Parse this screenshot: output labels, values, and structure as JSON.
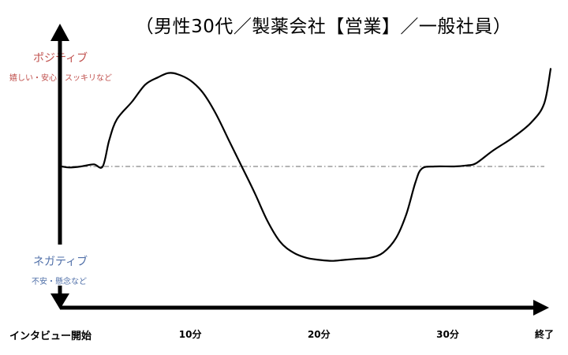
{
  "title": "（男性30代／製薬会社【営業】／一般社員）",
  "y_axis": {
    "positive_label": "ポジティブ",
    "positive_sub": "嬉しい・安心・スッキリなど",
    "negative_label": "ネガティブ",
    "negative_sub": "不安・懸念など"
  },
  "x_axis": {
    "start_label": "インタビュー開始",
    "ticks": [
      {
        "value": 10,
        "label": "10分"
      },
      {
        "value": 20,
        "label": "20分"
      },
      {
        "value": 30,
        "label": "30分"
      },
      {
        "value": 38,
        "label": "終了"
      }
    ]
  },
  "colors": {
    "positive": "#c0504d",
    "negative": "#4f6fa8",
    "line": "#000000",
    "baseline": "#888888"
  },
  "chart_data": {
    "type": "line",
    "title": "（男性30代／製薬会社【営業】／一般社員）",
    "xlabel": "",
    "ylabel": "",
    "xlim": [
      0,
      38
    ],
    "ylim": [
      -1,
      1
    ],
    "grid": false,
    "baseline": 0,
    "series": [
      {
        "points": [
          [
            0,
            0.0
          ],
          [
            0.6,
            -0.01
          ],
          [
            1.5,
            0.0
          ],
          [
            2.5,
            0.02
          ],
          [
            3.2,
            0.0
          ],
          [
            3.7,
            0.25
          ],
          [
            4.3,
            0.45
          ],
          [
            5.5,
            0.62
          ],
          [
            6.5,
            0.78
          ],
          [
            7.5,
            0.85
          ],
          [
            8.3,
            0.89
          ],
          [
            9.0,
            0.88
          ],
          [
            10.0,
            0.82
          ],
          [
            11.0,
            0.7
          ],
          [
            12.0,
            0.5
          ],
          [
            13.0,
            0.25
          ],
          [
            14.0,
            0.0
          ],
          [
            15.0,
            -0.25
          ],
          [
            16.0,
            -0.52
          ],
          [
            17.0,
            -0.72
          ],
          [
            18.0,
            -0.82
          ],
          [
            19.0,
            -0.87
          ],
          [
            20.0,
            -0.89
          ],
          [
            21.0,
            -0.9
          ],
          [
            22.0,
            -0.89
          ],
          [
            23.0,
            -0.88
          ],
          [
            24.0,
            -0.87
          ],
          [
            25.0,
            -0.82
          ],
          [
            26.0,
            -0.68
          ],
          [
            26.8,
            -0.45
          ],
          [
            27.5,
            -0.15
          ],
          [
            28.0,
            -0.02
          ],
          [
            29.0,
            0.0
          ],
          [
            30.5,
            0.0
          ],
          [
            31.5,
            0.01
          ],
          [
            32.2,
            0.03
          ],
          [
            33.5,
            0.15
          ],
          [
            35.0,
            0.27
          ],
          [
            36.5,
            0.42
          ],
          [
            37.5,
            0.6
          ],
          [
            38.0,
            0.93
          ]
        ]
      }
    ]
  }
}
